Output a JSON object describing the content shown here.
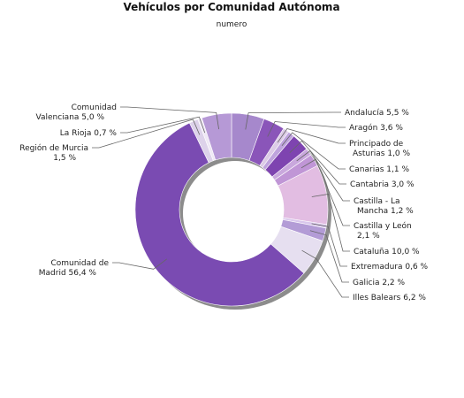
{
  "chart_data": {
    "type": "pie",
    "style": "donut",
    "title": "Vehículos por Comunidad Autónoma",
    "subtitle": "numero",
    "slices": [
      {
        "name": "Andalucía",
        "label": [
          "Andalucía 5,5 %"
        ],
        "value": 5.5,
        "color": "#a688cc"
      },
      {
        "name": "Aragón",
        "label": [
          "Aragón 3,6 %"
        ],
        "value": 3.6,
        "color": "#8a55b9"
      },
      {
        "name": "Principado de Asturias",
        "label": [
          "Principado de",
          "Asturias 1,0 %"
        ],
        "value": 1.0,
        "color": "#dccbe6"
      },
      {
        "name": "Canarias",
        "label": [
          "Canarias 1,1 %"
        ],
        "value": 1.1,
        "color": "#bfa4dd"
      },
      {
        "name": "Cantabria",
        "label": [
          "Cantabria 3,0 %"
        ],
        "value": 3.0,
        "color": "#7e44b0"
      },
      {
        "name": "Castilla - La Mancha",
        "label": [
          "Castilla - La",
          "Mancha 1,2 %"
        ],
        "value": 1.2,
        "color": "#c9a8dd"
      },
      {
        "name": "Castilla y León",
        "label": [
          "Castilla y León",
          "2,1 %"
        ],
        "value": 2.1,
        "color": "#c096d6"
      },
      {
        "name": "Cataluña",
        "label": [
          "Cataluña 10,0 %"
        ],
        "value": 10.0,
        "color": "#e2bde2"
      },
      {
        "name": "Extremadura",
        "label": [
          "Extremadura 0,6 %"
        ],
        "value": 0.6,
        "color": "#d9c7ec"
      },
      {
        "name": "Galicia",
        "label": [
          "Galicia 2,2 %"
        ],
        "value": 2.2,
        "color": "#b39cd6"
      },
      {
        "name": "Illes Balears",
        "label": [
          "Illes Balears 6,2 %"
        ],
        "value": 6.2,
        "color": "#e6dff0"
      },
      {
        "name": "Comunidad de Madrid",
        "label": [
          "Comunidad de",
          "Madrid 56,4 %"
        ],
        "value": 56.4,
        "color": "#7a4bb2"
      },
      {
        "name": "Región de Murcia",
        "label": [
          "Región de Murcia",
          "1,5 %"
        ],
        "value": 1.5,
        "color": "#ddd2ea"
      },
      {
        "name": "La Rioja",
        "label": [
          "La Rioja 0,7 %"
        ],
        "value": 0.7,
        "color": "#efe8f5"
      },
      {
        "name": "Comunidad Valenciana",
        "label": [
          "Comunidad",
          "Valenciana 5,0 %"
        ],
        "value": 5.0,
        "color": "#b699d6"
      }
    ]
  }
}
